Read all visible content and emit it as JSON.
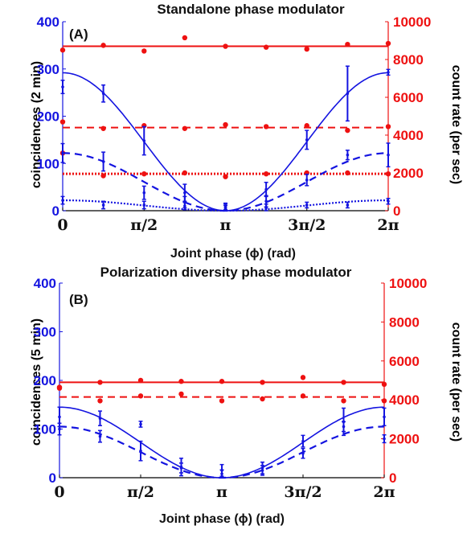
{
  "colors": {
    "left": "#1414e0",
    "right": "#ee1111",
    "axis": "#000000"
  },
  "chart_data": [
    {
      "type": "line",
      "panel": "(A)",
      "title": "Standalone phase modulator",
      "xlabel": "Joint phase (ϕ) (rad)",
      "ylabel_left": "coincidences (2 min)",
      "ylabel_right": "count rate (per sec)",
      "xlim": [
        0,
        6.2832
      ],
      "ylim_left": [
        0,
        400
      ],
      "ylim_right": [
        0,
        10000
      ],
      "xticks": [
        {
          "value": 0,
          "label": "0"
        },
        {
          "value": 1.5708,
          "label": "π/2"
        },
        {
          "value": 3.1416,
          "label": "π"
        },
        {
          "value": 4.7124,
          "label": "3π/2"
        },
        {
          "value": 6.2832,
          "label": "2π"
        }
      ],
      "yticks_left": [
        "0",
        "100",
        "200",
        "300",
        "400"
      ],
      "yticks_right": [
        "0",
        "2000",
        "4000",
        "6000",
        "8000",
        "10000"
      ],
      "fits_left": [
        {
          "style": "solid",
          "amp": 292
        },
        {
          "style": "dashed",
          "amp": 122
        },
        {
          "style": "dotted",
          "amp": 22
        }
      ],
      "points_left": [
        {
          "style": "solid",
          "x": [
            0,
            0.785,
            1.571,
            2.356,
            3.142,
            3.927,
            4.712,
            5.498,
            6.283
          ],
          "y": [
            262,
            248,
            148,
            38,
            6,
            45,
            150,
            248,
            293
          ],
          "err": [
            14,
            18,
            30,
            18,
            10,
            15,
            20,
            58,
            6
          ]
        },
        {
          "style": "dashed",
          "x": [
            0,
            0.785,
            1.571,
            2.356,
            3.142,
            3.927,
            4.712,
            5.498,
            6.283
          ],
          "y": [
            122,
            104,
            38,
            18,
            8,
            20,
            65,
            118,
            118
          ],
          "err": [
            20,
            20,
            14,
            12,
            6,
            12,
            12,
            10,
            25
          ]
        },
        {
          "style": "dotted",
          "x": [
            0,
            0.785,
            1.571,
            2.356,
            3.142,
            3.927,
            4.712,
            5.498,
            6.283
          ],
          "y": [
            22,
            12,
            12,
            10,
            5,
            6,
            12,
            12,
            20
          ],
          "err": [
            8,
            8,
            8,
            8,
            6,
            8,
            6,
            6,
            6
          ]
        }
      ],
      "lines_right": [
        {
          "style": "solid",
          "y": 8700
        },
        {
          "style": "dashed",
          "y": 4400
        },
        {
          "style": "dotted",
          "y": 1950
        }
      ],
      "points_right": [
        {
          "style": "solid",
          "x": [
            0,
            0.785,
            1.571,
            2.356,
            3.142,
            3.927,
            4.712,
            5.498,
            6.283
          ],
          "y": [
            8500,
            8750,
            8450,
            9150,
            8700,
            8650,
            8550,
            8800,
            8850
          ]
        },
        {
          "style": "dashed",
          "x": [
            0,
            0.785,
            1.571,
            2.356,
            3.142,
            3.927,
            4.712,
            5.498,
            6.283
          ],
          "y": [
            4700,
            4350,
            4500,
            4350,
            4550,
            4450,
            4500,
            4250,
            4450
          ]
        },
        {
          "style": "dotted",
          "x": [
            0,
            0.785,
            1.571,
            2.356,
            3.142,
            3.927,
            4.712,
            5.498,
            6.283
          ],
          "y": [
            3050,
            1850,
            1950,
            2000,
            1800,
            1950,
            2000,
            2000,
            1950
          ]
        }
      ]
    },
    {
      "type": "line",
      "panel": "(B)",
      "title": "Polarization diversity phase modulator",
      "xlabel": "Joint phase (ϕ) (rad)",
      "ylabel_left": "coincidences (5 min)",
      "ylabel_right": "count rate (per sec)",
      "xlim": [
        0,
        6.2832
      ],
      "ylim_left": [
        0,
        400
      ],
      "ylim_right": [
        0,
        10000
      ],
      "xticks": [
        {
          "value": 0,
          "label": "0"
        },
        {
          "value": 1.5708,
          "label": "π/2"
        },
        {
          "value": 3.1416,
          "label": "π"
        },
        {
          "value": 4.7124,
          "label": "3π/2"
        },
        {
          "value": 6.2832,
          "label": "2π"
        }
      ],
      "yticks_left": [
        "0",
        "100",
        "200",
        "300",
        "400"
      ],
      "yticks_right": [
        "0",
        "2000",
        "4000",
        "6000",
        "8000",
        "10000"
      ],
      "fits_left": [
        {
          "style": "solid",
          "amp": 145
        },
        {
          "style": "dashed",
          "amp": 105
        }
      ],
      "points_left": [
        {
          "style": "solid",
          "x": [
            0,
            0.785,
            1.571,
            2.356,
            3.142,
            3.927,
            4.712,
            5.498,
            6.283
          ],
          "y": [
            125,
            122,
            55,
            22,
            15,
            20,
            75,
            115,
            125
          ],
          "err": [
            20,
            15,
            20,
            18,
            12,
            12,
            12,
            28,
            18
          ]
        },
        {
          "style": "dashed",
          "x": [
            0,
            0.785,
            1.571,
            2.356,
            3.142,
            3.927,
            4.712,
            5.498,
            6.283
          ],
          "y": [
            100,
            85,
            110,
            20,
            8,
            15,
            50,
            105,
            80
          ],
          "err": [
            12,
            12,
            6,
            10,
            8,
            10,
            10,
            10,
            8
          ]
        }
      ],
      "lines_right": [
        {
          "style": "solid",
          "y": 4900
        },
        {
          "style": "dashed",
          "y": 4150
        }
      ],
      "points_right": [
        {
          "style": "solid",
          "x": [
            0,
            0.785,
            1.571,
            2.356,
            3.142,
            3.927,
            4.712,
            5.498,
            6.283
          ],
          "y": [
            4650,
            4900,
            5000,
            4950,
            4950,
            4900,
            5150,
            4900,
            4800
          ]
        },
        {
          "style": "dashed",
          "x": [
            0,
            0.785,
            1.571,
            2.356,
            3.142,
            3.927,
            4.712,
            5.498,
            6.283
          ],
          "y": [
            4600,
            3950,
            4200,
            4300,
            3950,
            4050,
            4200,
            3950,
            3950
          ]
        }
      ]
    }
  ]
}
